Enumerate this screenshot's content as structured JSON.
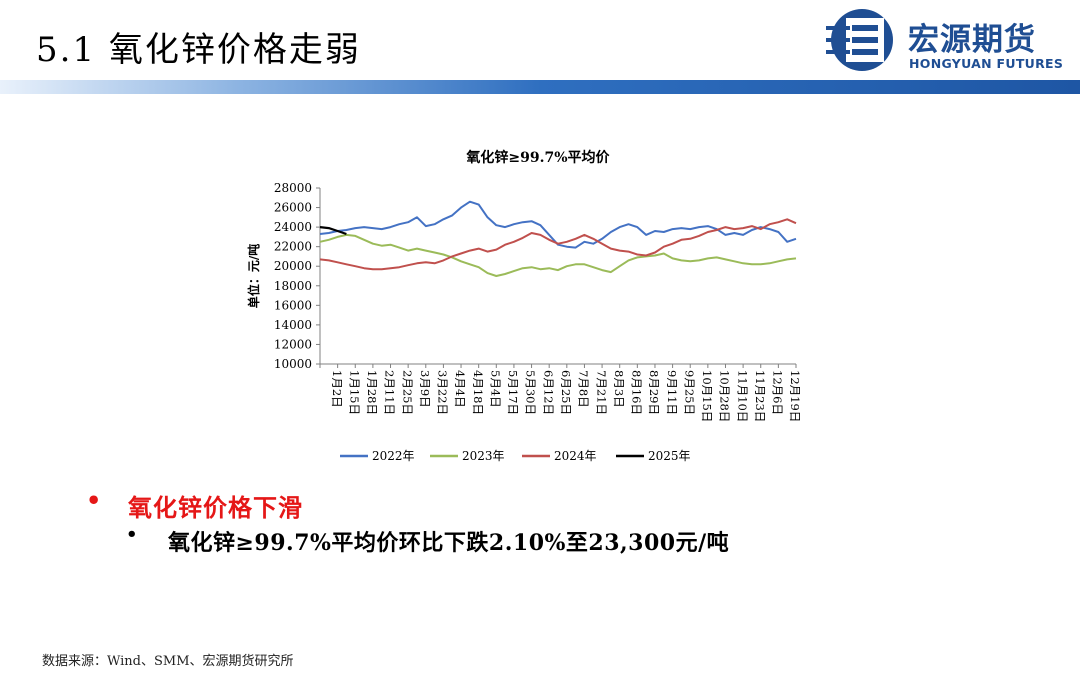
{
  "slide": {
    "title": "5.1 氧化锌价格走弱",
    "logo_cn": "宏源期货",
    "logo_en": "HONGYUAN FUTURES",
    "bullet_main": "氧化锌价格下滑",
    "bullet_sub": "氧化锌≥99.7%平均价环比下跌2.10%至23,300元/吨",
    "source": "数据来源：Wind、SMM、宏源期货研究所",
    "bullet_mark": "•"
  },
  "colors": {
    "brand_blue": "#1f4e93",
    "bullet_red": "#e51717"
  },
  "chart_data": {
    "type": "line",
    "title": "氧化锌≥99.7%平均价",
    "ylabel": "单位：元/吨",
    "ylim": [
      10000,
      28000
    ],
    "yticks": [
      10000,
      12000,
      14000,
      16000,
      18000,
      20000,
      22000,
      24000,
      26000,
      28000
    ],
    "xticks": [
      "1月2日",
      "1月15日",
      "1月28日",
      "2月11日",
      "2月25日",
      "3月9日",
      "3月22日",
      "4月4日",
      "4月18日",
      "5月4日",
      "5月17日",
      "5月30日",
      "6月12日",
      "6月25日",
      "7月8日",
      "7月21日",
      "8月3日",
      "8月16日",
      "8月29日",
      "9月11日",
      "9月25日",
      "10月15日",
      "10月28日",
      "11月10日",
      "11月23日",
      "12月6日",
      "12月19日"
    ],
    "legend_position": "bottom",
    "grid": false,
    "series": [
      {
        "name": "2022年",
        "color": "#4472c4",
        "values": [
          23300,
          23400,
          23600,
          23700,
          23900,
          24000,
          23900,
          23800,
          24000,
          24300,
          24500,
          25000,
          24100,
          24300,
          24800,
          25200,
          26000,
          26600,
          26300,
          25000,
          24200,
          24000,
          24300,
          24500,
          24600,
          24200,
          23200,
          22200,
          22000,
          21900,
          22500,
          22300,
          22800,
          23500,
          24000,
          24300,
          24000,
          23200,
          23600,
          23500,
          23800,
          23900,
          23800,
          24000,
          24100,
          23800,
          23200,
          23400,
          23200,
          23700,
          24000,
          23800,
          23500,
          22500,
          22800
        ]
      },
      {
        "name": "2023年",
        "color": "#9bbb59",
        "values": [
          22500,
          22700,
          23000,
          23200,
          23100,
          22700,
          22300,
          22100,
          22200,
          21900,
          21600,
          21800,
          21600,
          21400,
          21200,
          20900,
          20500,
          20200,
          19900,
          19300,
          19000,
          19200,
          19500,
          19800,
          19900,
          19700,
          19800,
          19600,
          20000,
          20200,
          20200,
          19900,
          19600,
          19400,
          20000,
          20600,
          20900,
          21000,
          21100,
          21300,
          20800,
          20600,
          20500,
          20600,
          20800,
          20900,
          20700,
          20500,
          20300,
          20200,
          20200,
          20300,
          20500,
          20700,
          20800
        ]
      },
      {
        "name": "2024年",
        "color": "#c0504d",
        "values": [
          20700,
          20600,
          20400,
          20200,
          20000,
          19800,
          19700,
          19700,
          19800,
          19900,
          20100,
          20300,
          20400,
          20300,
          20600,
          21000,
          21300,
          21600,
          21800,
          21500,
          21700,
          22200,
          22500,
          22900,
          23400,
          23200,
          22700,
          22300,
          22500,
          22800,
          23200,
          22800,
          22300,
          21800,
          21600,
          21500,
          21200,
          21100,
          21400,
          22000,
          22300,
          22700,
          22800,
          23100,
          23500,
          23700,
          24000,
          23800,
          23900,
          24100,
          23800,
          24300,
          24500,
          24800,
          24400
        ]
      },
      {
        "name": "2025年",
        "color": "#000000",
        "values": [
          24000,
          23900,
          23600,
          23300
        ]
      }
    ]
  }
}
